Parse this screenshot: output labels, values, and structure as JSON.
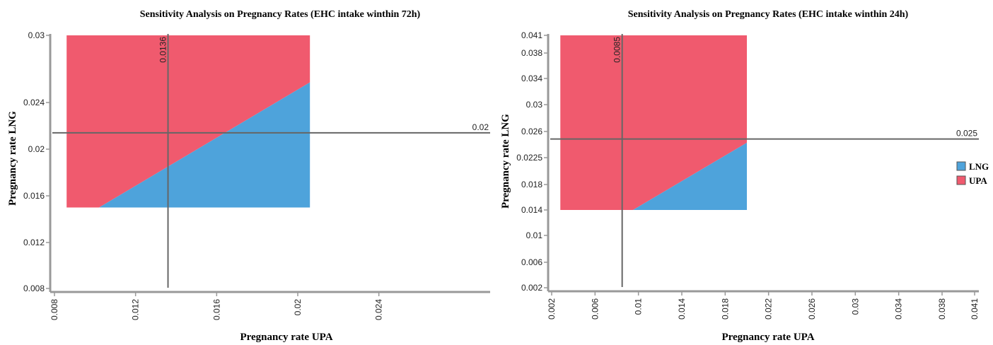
{
  "chart_data": [
    {
      "type": "area",
      "title": "Sensitivity Analysis on Pregnancy Rates (EHC intake winthin 72h)",
      "xlabel": "Pregnancy rate UPA",
      "ylabel": "Pregnancy rate LNG",
      "x_ticks": [
        "0.008",
        "0.012",
        "0.016",
        "0.02",
        "0.024"
      ],
      "y_ticks": [
        "0.008",
        "0.012",
        "0.016",
        "0.02",
        "0.024",
        "0.03"
      ],
      "region_x": [
        0.0086,
        0.0206
      ],
      "region_y": [
        0.015,
        0.03
      ],
      "boundary": [
        [
          0.0102,
          0.015
        ],
        [
          0.0206,
          0.0258
        ]
      ],
      "base_case": {
        "x": 0.0136,
        "y": 0.0214
      },
      "annotations": {
        "vertical": "0.0136",
        "horizontal": "0.02"
      },
      "series": [
        {
          "name": "LNG",
          "color": "#4ea3db",
          "region": "below boundary"
        },
        {
          "name": "UPA",
          "color": "#f05a6e",
          "region": "above boundary"
        }
      ],
      "legend": "none"
    },
    {
      "type": "area",
      "title": "Sensitivity Analysis on Pregnancy Rates (EHC intake winthin 24h)",
      "xlabel": "Pregnancy rate UPA",
      "ylabel": "Pregnancy rate LNG",
      "x_ticks": [
        "0.002",
        "0.006",
        "0.01",
        "0.014",
        "0.018",
        "0.022",
        "0.026",
        "0.03",
        "0.034",
        "0.038",
        "0.041"
      ],
      "y_ticks": [
        "0.002",
        "0.006",
        "0.01",
        "0.014",
        "0.018",
        "0.0225",
        "0.026",
        "0.03",
        "0.034",
        "0.038",
        "0.041"
      ],
      "region_x": [
        0.0028,
        0.02
      ],
      "region_y": [
        0.014,
        0.041
      ],
      "boundary": [
        [
          0.0095,
          0.014
        ],
        [
          0.02,
          0.0245
        ]
      ],
      "base_case": {
        "x": 0.0085,
        "y": 0.025
      },
      "annotations": {
        "vertical": "0.0085",
        "horizontal": "0.025"
      },
      "series": [
        {
          "name": "LNG",
          "color": "#4ea3db",
          "region": "below boundary"
        },
        {
          "name": "UPA",
          "color": "#f05a6e",
          "region": "above boundary"
        }
      ],
      "legend": "right"
    }
  ]
}
